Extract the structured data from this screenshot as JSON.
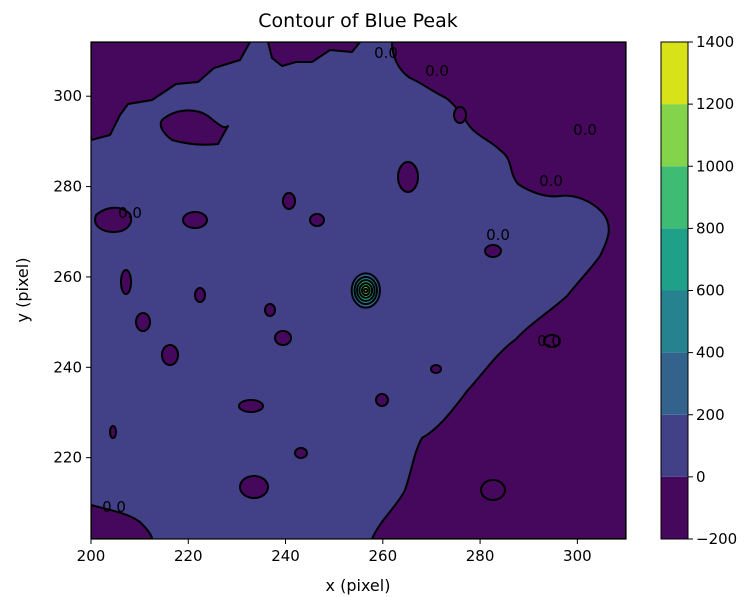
{
  "chart_data": {
    "type": "contour",
    "title": "Contour of Blue Peak",
    "xlabel": "x (pixel)",
    "ylabel": "y (pixel)",
    "xlim": [
      200,
      310
    ],
    "ylim": [
      202,
      312
    ],
    "x_ticks": [
      "200",
      "220",
      "240",
      "260",
      "280",
      "300"
    ],
    "y_ticks": [
      "220",
      "240",
      "260",
      "280",
      "300"
    ],
    "levels": [
      -200,
      0,
      200,
      400,
      600,
      800,
      1000,
      1200,
      1400
    ],
    "colorbar_ticks": [
      "−200",
      "0",
      "200",
      "400",
      "600",
      "800",
      "1000",
      "1200",
      "1400"
    ],
    "level_colors": [
      "#46085c",
      "#424086",
      "#33638d",
      "#26828e",
      "#1fa088",
      "#3fbc73",
      "#84d44b",
      "#d8e219"
    ],
    "contour_labels": [
      "0.0",
      "0.0",
      "0.0",
      "0.0",
      "0.0",
      "0.0",
      "0.0",
      "0.0"
    ],
    "peak": {
      "x": 256.5,
      "y": 257,
      "approx_max": 1150
    }
  }
}
